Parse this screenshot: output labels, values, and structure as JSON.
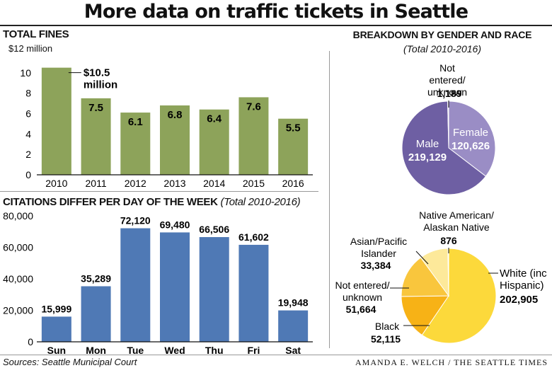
{
  "title": "More data on traffic tickets in Seattle",
  "chart_data": [
    {
      "type": "bar",
      "title": "TOTAL FINES",
      "unit_label": "$12 million",
      "categories": [
        "2010",
        "2011",
        "2012",
        "2013",
        "2014",
        "2015",
        "2016"
      ],
      "values": [
        10.5,
        7.5,
        6.1,
        6.8,
        6.4,
        7.6,
        5.5
      ],
      "data_labels": [
        "$10.5 million",
        "7.5",
        "6.1",
        "6.8",
        "6.4",
        "7.6",
        "5.5"
      ],
      "yticks": [
        "0",
        "2",
        "4",
        "6",
        "8",
        "10"
      ],
      "ylim": [
        0,
        12
      ],
      "color": "#8da35a"
    },
    {
      "type": "bar",
      "title": "CITATIONS DIFFER PER DAY OF THE WEEK",
      "subtitle": "(Total 2010-2016)",
      "categories": [
        "Sun",
        "Mon",
        "Tue",
        "Wed",
        "Thu",
        "Fri",
        "Sat"
      ],
      "values": [
        15999,
        35289,
        72120,
        69480,
        66506,
        61602,
        19948
      ],
      "data_labels": [
        "15,999",
        "35,289",
        "72,120",
        "69,480",
        "66,506",
        "61,602",
        "19,948"
      ],
      "yticks": [
        "0",
        "20,000",
        "40,000",
        "60,000",
        "80,000"
      ],
      "ylim": [
        0,
        80000
      ],
      "color": "#4f79b5"
    },
    {
      "type": "pie",
      "title": "BREAKDOWN BY GENDER AND RACE",
      "subtitle": "(Total 2010-2016)",
      "slices": [
        {
          "label": "Female",
          "value": 120626,
          "value_label": "120,626",
          "color": "#9a8dc5"
        },
        {
          "label": "Male",
          "value": 219129,
          "value_label": "219,129",
          "color": "#6e5fa3"
        },
        {
          "label": "Not entered/ unknown",
          "value": 1189,
          "value_label": "1,189",
          "color": "#cdc6e4"
        }
      ]
    },
    {
      "type": "pie",
      "slices": [
        {
          "label": "White (inc Hispanic)",
          "value": 202905,
          "value_label": "202,905",
          "color": "#fcd93b"
        },
        {
          "label": "Black",
          "value": 52115,
          "value_label": "52,115",
          "color": "#f7b216"
        },
        {
          "label": "Not entered/ unknown",
          "value": 51664,
          "value_label": "51,664",
          "color": "#f9c63d"
        },
        {
          "label": "Asian/Pacific Islander",
          "value": 33384,
          "value_label": "33,384",
          "color": "#fde99a"
        },
        {
          "label": "Native American/ Alaskan Native",
          "value": 876,
          "value_label": "876",
          "color": "#fdf2c2"
        }
      ]
    }
  ],
  "sources": "Sources: Seattle Municipal Court",
  "credit": "AMANDA E. WELCH / THE SEATTLE TIMES"
}
